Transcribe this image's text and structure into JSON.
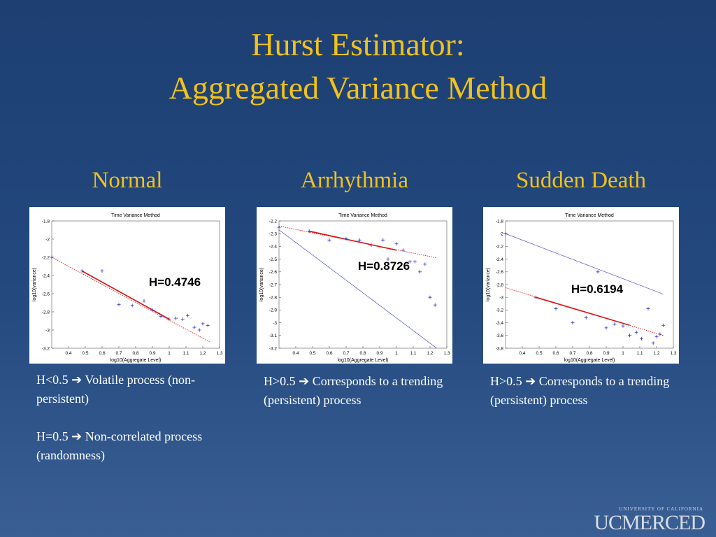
{
  "title_lines": [
    "Hurst Estimator:",
    "Aggregated Variance Method"
  ],
  "logo": {
    "small": "UNIVERSITY OF CALIFORNIA",
    "big": "UCMERCED"
  },
  "columns": [
    {
      "heading": "Normal",
      "notes": [
        "H<0.5 ➔ Volatile process (non-persistent)",
        "H=0.5 ➔ Non-correlated process (randomness)"
      ]
    },
    {
      "heading": "Arrhythmia",
      "notes": [
        "H>0.5 ➔ Corresponds to a trending (persistent) process"
      ]
    },
    {
      "heading": "Sudden Death",
      "notes": [
        "H>0.5 ➔ Corresponds to a trending (persistent) process"
      ]
    }
  ],
  "chart_data": [
    {
      "type": "scatter",
      "title": "Time Variance Method",
      "x_label": "log10(Aggregate Level)",
      "y_label": "log10(variance)",
      "annotation": "H=0.4746",
      "color": "#3333cc",
      "fit_color": "#dd1111",
      "xlim": [
        0.3,
        1.3
      ],
      "xticks": [
        0.4,
        0.5,
        0.6,
        0.7,
        0.8,
        0.9,
        1,
        1.1,
        1.2,
        1.3
      ],
      "ylim": [
        -3.2,
        -1.8
      ],
      "yticks": [
        -3.2,
        -3,
        -2.8,
        -2.6,
        -2.4,
        -2.2,
        -2,
        -1.8
      ],
      "points": {
        "x": [
          0.3,
          0.48,
          0.6,
          0.7,
          0.78,
          0.85,
          0.9,
          0.95,
          1.0,
          1.04,
          1.08,
          1.11,
          1.15,
          1.18,
          1.2,
          1.23
        ],
        "y": [
          -2.2,
          -2.35,
          -2.35,
          -2.72,
          -2.73,
          -2.68,
          -2.78,
          -2.85,
          -2.88,
          -2.87,
          -2.88,
          -2.84,
          -2.97,
          -3.0,
          -2.93,
          -2.95
        ]
      },
      "fit": {
        "x": [
          0.48,
          1.0
        ],
        "y": [
          -2.35,
          -2.88
        ]
      },
      "extension": {
        "x": [
          0.3,
          1.24
        ],
        "y": [
          -2.2,
          -3.13
        ]
      }
    },
    {
      "type": "scatter",
      "title": "Time Variance Method",
      "x_label": "log10(Aggregate Level)",
      "y_label": "log10(variance)",
      "annotation": "H=0.8726",
      "color": "#3333cc",
      "fit_color": "#dd1111",
      "xlim": [
        0.3,
        1.3
      ],
      "xticks": [
        0.4,
        0.5,
        0.6,
        0.7,
        0.8,
        0.9,
        1,
        1.1,
        1.2,
        1.3
      ],
      "ylim": [
        -3.2,
        -2.2
      ],
      "yticks": [
        -3.2,
        -3.1,
        -3,
        -2.9,
        -2.8,
        -2.7,
        -2.6,
        -2.5,
        -2.4,
        -2.3,
        -2.2
      ],
      "points": {
        "x": [
          0.3,
          0.48,
          0.6,
          0.7,
          0.78,
          0.85,
          0.92,
          1.0,
          1.04,
          0.95,
          1.08,
          1.11,
          1.14,
          1.17,
          1.2,
          1.23
        ],
        "y": [
          -2.25,
          -2.28,
          -2.35,
          -2.34,
          -2.35,
          -2.39,
          -2.35,
          -2.38,
          -2.43,
          -2.5,
          -2.52,
          -2.52,
          -2.6,
          -2.54,
          -2.8,
          -2.86
        ]
      },
      "fit": {
        "x": [
          0.48,
          1.0
        ],
        "y": [
          -2.28,
          -2.43
        ]
      },
      "extension": {
        "x": [
          0.3,
          1.24
        ],
        "y": [
          -2.24,
          -2.49
        ]
      },
      "reference": {
        "x": [
          0.3,
          1.24
        ],
        "y": [
          -2.27,
          -3.2
        ]
      }
    },
    {
      "type": "scatter",
      "title": "Time Variance Method",
      "x_label": "log10(Aggregate Level)",
      "y_label": "log10(variance)",
      "annotation": "H=0.6194",
      "color": "#3333cc",
      "fit_color": "#dd1111",
      "xlim": [
        0.3,
        1.3
      ],
      "xticks": [
        0.4,
        0.5,
        0.6,
        0.7,
        0.8,
        0.9,
        1,
        1.1,
        1.2,
        1.3
      ],
      "ylim": [
        -3.8,
        -1.8
      ],
      "yticks": [
        -3.8,
        -3.6,
        -3.4,
        -3.2,
        -3,
        -2.8,
        -2.6,
        -2.4,
        -2.2,
        -2,
        -1.8
      ],
      "points": {
        "x": [
          0.3,
          0.48,
          0.6,
          0.7,
          0.78,
          0.85,
          0.9,
          0.95,
          1.0,
          1.04,
          1.08,
          1.11,
          1.15,
          1.18,
          1.2,
          1.22,
          1.24
        ],
        "y": [
          -2.0,
          -3.0,
          -3.18,
          -3.4,
          -3.32,
          -2.6,
          -3.48,
          -3.42,
          -3.45,
          -3.6,
          -3.55,
          -3.65,
          -3.18,
          -3.72,
          -3.62,
          -3.58,
          -3.44
        ]
      },
      "fit": {
        "x": [
          0.48,
          1.04
        ],
        "y": [
          -3.0,
          -3.44
        ]
      },
      "extension": {
        "x": [
          0.3,
          1.24
        ],
        "y": [
          -2.85,
          -3.6
        ]
      },
      "reference": {
        "x": [
          0.3,
          1.24
        ],
        "y": [
          -2.0,
          -2.95
        ]
      }
    }
  ]
}
